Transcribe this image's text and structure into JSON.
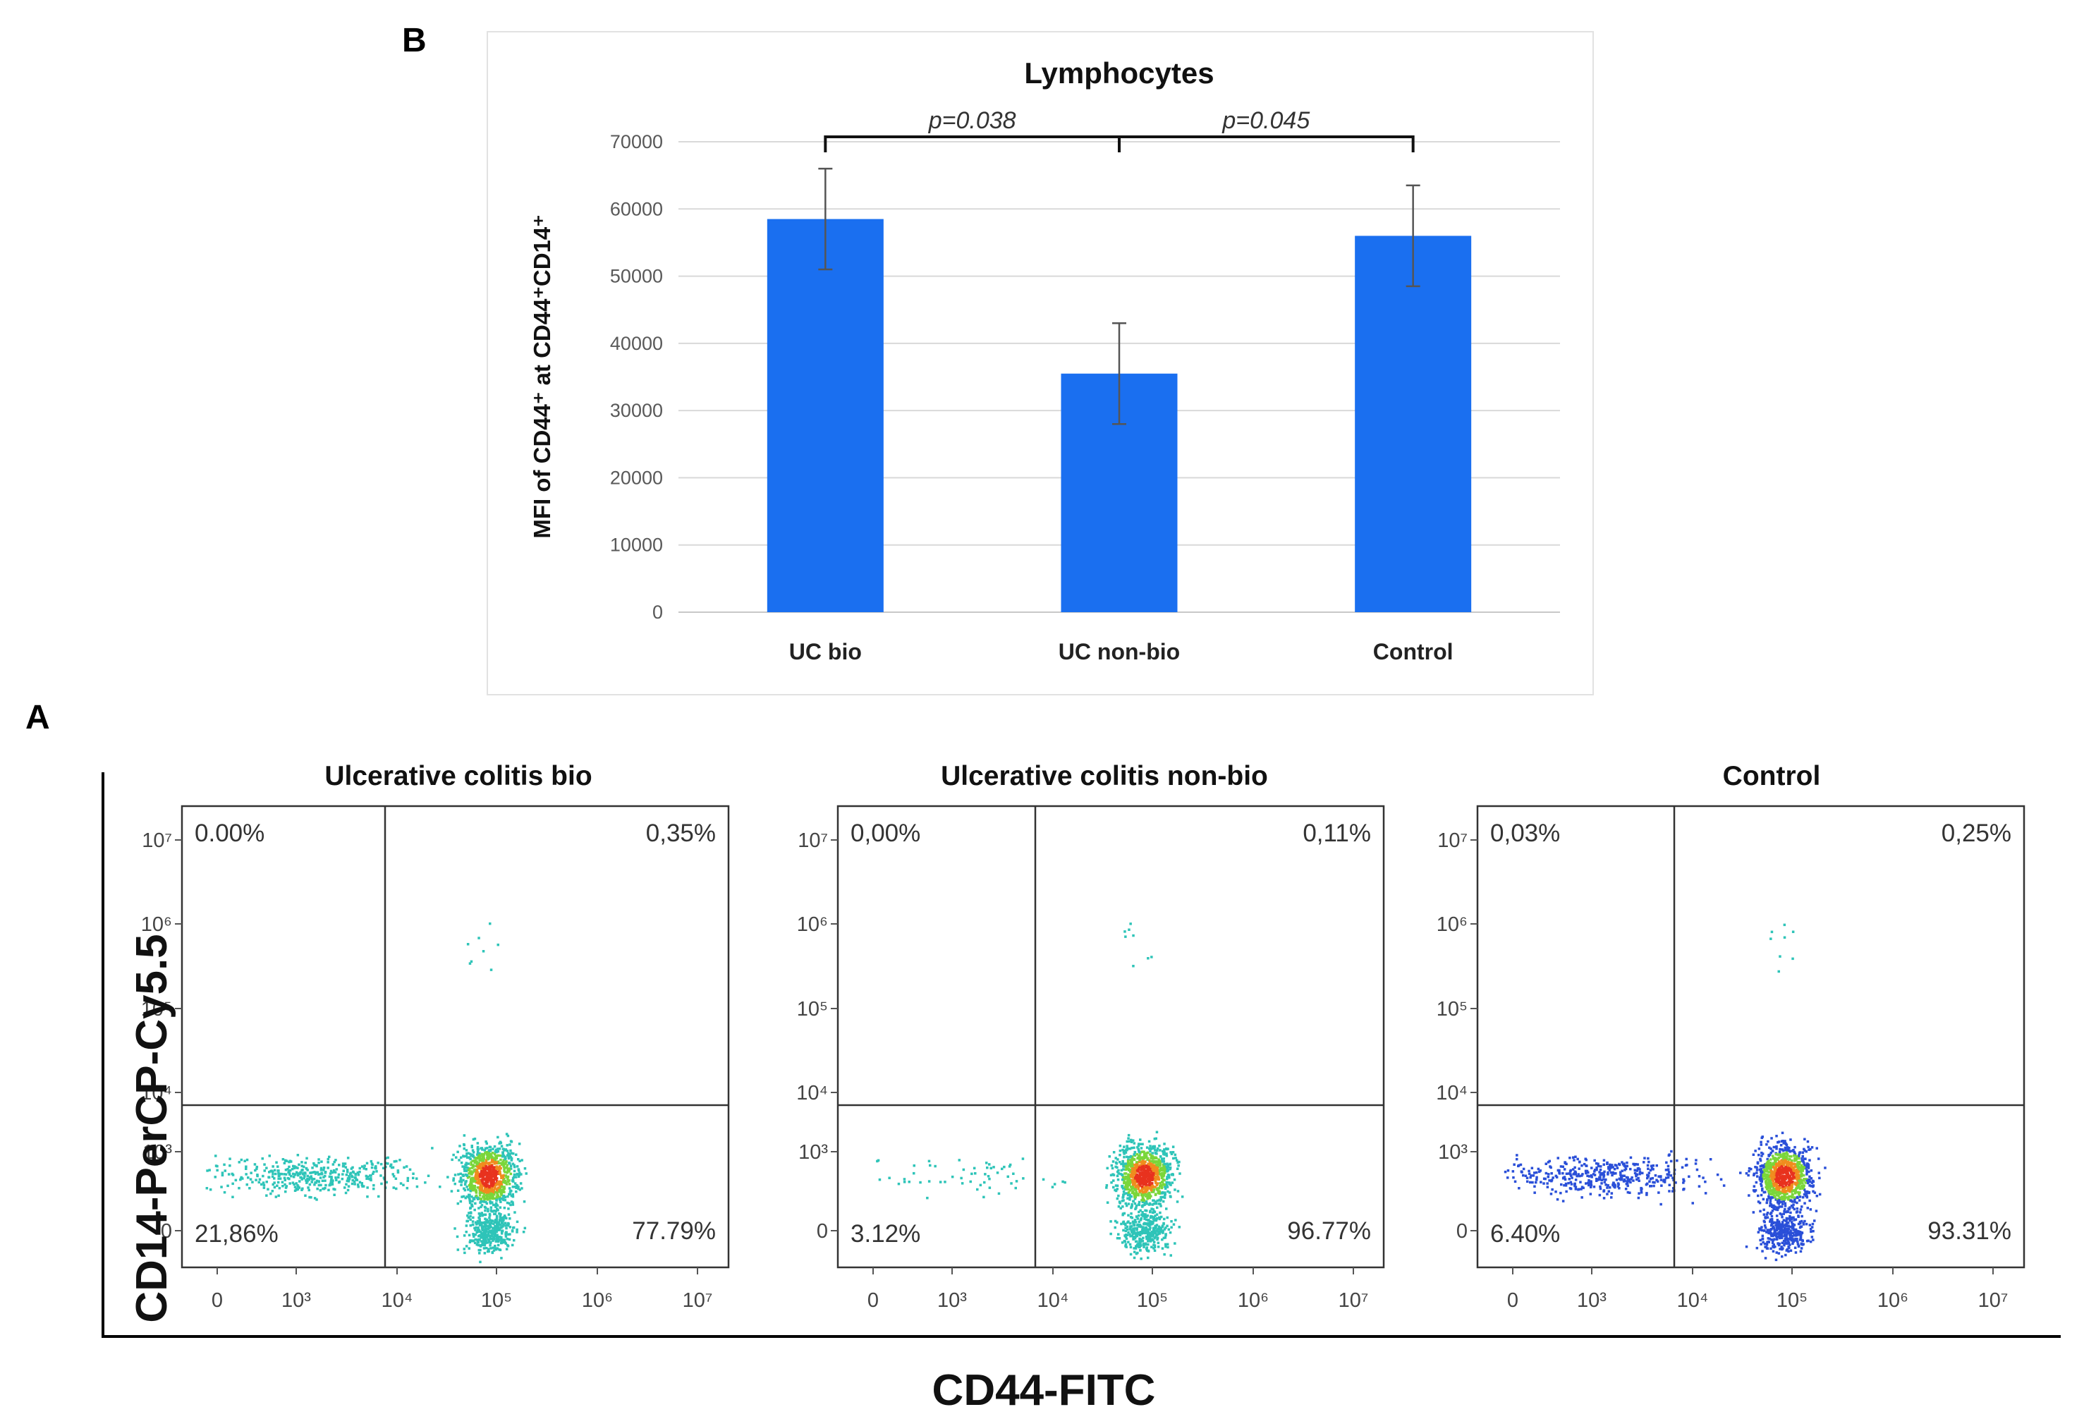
{
  "panel_b_letter": "B",
  "panel_a_letter": "A",
  "colors": {
    "bar": "#1a6ff0",
    "bar_edge": "#1460d8",
    "grid": "#d9d9d9",
    "error": "#555555",
    "dots_low": "#2a4fd8",
    "dots_mid": "#2ec4b8",
    "dots_high": "#7ad63a",
    "dots_hot": "#f08c1e",
    "dots_core": "#e8321e"
  },
  "chart_data": [
    {
      "type": "bar",
      "panel": "B",
      "title": "Lymphocytes",
      "ylabel": "MFI of CD44⁺ at CD44⁺CD14⁺",
      "xlabel": "",
      "categories": [
        "UC bio",
        "UC non-bio",
        "Control"
      ],
      "values": [
        58500,
        35500,
        56000
      ],
      "errors": [
        7500,
        7500,
        7500
      ],
      "ylim": [
        0,
        70000
      ],
      "yticks": [
        0,
        10000,
        20000,
        30000,
        40000,
        50000,
        60000,
        70000
      ],
      "grid": true,
      "significance": [
        {
          "from": "UC bio",
          "to": "UC non-bio",
          "label": "p=0.038"
        },
        {
          "from": "UC non-bio",
          "to": "Control",
          "label": "p=0.045"
        }
      ]
    },
    {
      "type": "scatter",
      "panel": "A",
      "subtype": "flow-cytometry-density",
      "xlabel": "CD44-FITC",
      "ylabel": "CD14-PerCP-Cy5.5",
      "x_ticks": [
        "0",
        "10³",
        "10⁴",
        "10⁵",
        "10⁶",
        "10⁷"
      ],
      "y_ticks": [
        "0",
        "10³",
        "10⁴",
        "10⁵",
        "10⁶",
        "10⁷"
      ],
      "plots": [
        {
          "title": "Ulcerative colitis bio",
          "quadrants": {
            "upper_left": "0.00%",
            "upper_right": "0,35%",
            "lower_left": "21,86%",
            "lower_right": "77.79%"
          }
        },
        {
          "title": "Ulcerative colitis non-bio",
          "quadrants": {
            "upper_left": "0,00%",
            "upper_right": "0,11%",
            "lower_left": "3.12%",
            "lower_right": "96.77%"
          }
        },
        {
          "title": "Control",
          "quadrants": {
            "upper_left": "0,03%",
            "upper_right": "0,25%",
            "lower_left": "6.40%",
            "lower_right": "93.31%"
          }
        }
      ]
    }
  ]
}
